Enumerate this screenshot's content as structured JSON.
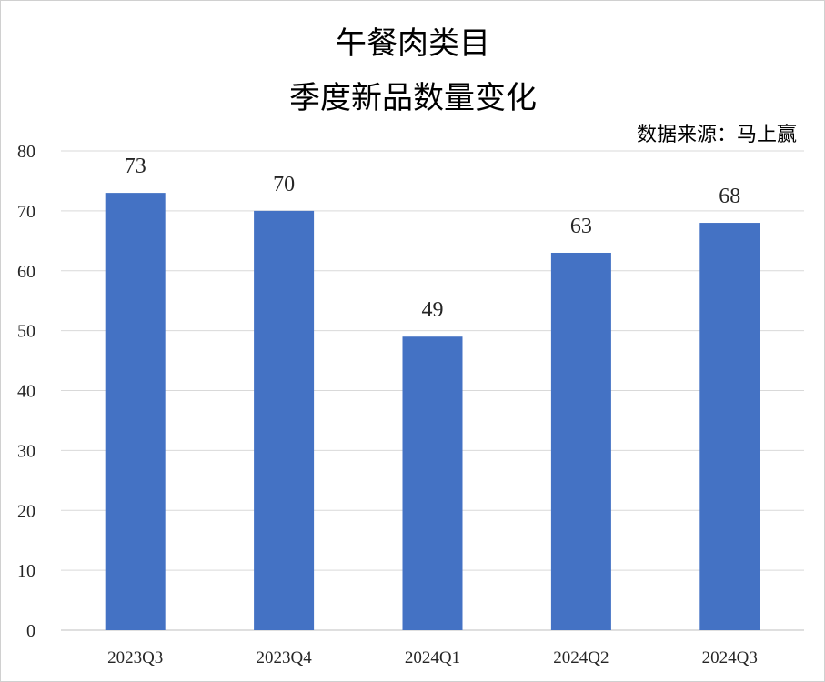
{
  "chart_data": {
    "type": "bar",
    "title": [
      "午餐肉类目",
      "季度新品数量变化"
    ],
    "source": "数据来源：马上赢",
    "categories": [
      "2023Q3",
      "2023Q4",
      "2024Q1",
      "2024Q2",
      "2024Q3"
    ],
    "values": [
      73,
      70,
      49,
      63,
      68
    ],
    "data_labels": [
      "73",
      "70",
      "49",
      "63",
      "68"
    ],
    "ylim": [
      0,
      80
    ],
    "yticks": [
      0,
      10,
      20,
      30,
      40,
      50,
      60,
      70,
      80
    ],
    "grid": true,
    "legend": "none",
    "bar_color": "#4472c4",
    "xlabel": "",
    "ylabel": ""
  }
}
